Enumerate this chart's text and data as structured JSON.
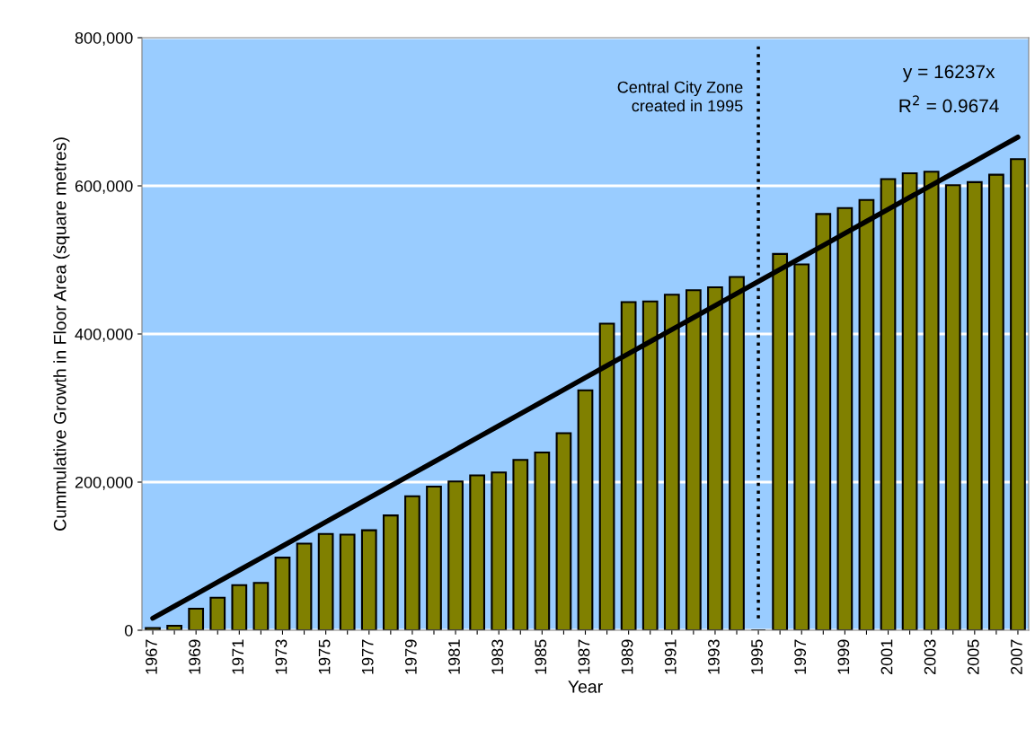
{
  "chart_data": {
    "type": "bar",
    "xlabel": "Year",
    "ylabel": "Cummulative Growth in Floor Area (square metres)",
    "categories": [
      "1967",
      null,
      "1969",
      null,
      "1971",
      null,
      "1973",
      null,
      "1975",
      null,
      "1977",
      null,
      "1979",
      null,
      "1981",
      null,
      "1983",
      null,
      "1985",
      null,
      "1987",
      null,
      "1989",
      null,
      "1991",
      null,
      "1993",
      null,
      "1995",
      null,
      "1997",
      null,
      "1999",
      null,
      "2001",
      null,
      "2003",
      null,
      "2005",
      null,
      "2007"
    ],
    "series": [
      {
        "color": "#808000",
        "values": [
          3000,
          6000,
          29000,
          44000,
          61000,
          64000,
          98000,
          117000,
          130000,
          129000,
          135000,
          155000,
          181000,
          194000,
          201000,
          209000,
          213000,
          230000,
          240000,
          266000,
          324000,
          414000,
          443000,
          444000,
          453000,
          459000,
          463000,
          477000,
          null,
          508000,
          494000,
          562000,
          570000,
          581000,
          609000,
          617000,
          619000,
          601000,
          605000,
          615000,
          636000
        ]
      },
      {
        "type": "line",
        "color": "#000000",
        "values": [
          16237,
          32474,
          48711,
          64948,
          81185,
          97422,
          113659,
          129896,
          146133,
          162370,
          178607,
          194844,
          211081,
          227318,
          243555,
          259792,
          276029,
          292266,
          308503,
          324740,
          340977,
          357214,
          373451,
          389688,
          405925,
          422162,
          438399,
          454636,
          470873,
          487110,
          503347,
          519584,
          535821,
          552058,
          568295,
          584532,
          600769,
          617006,
          633243,
          649480,
          665717
        ]
      }
    ],
    "ylim": [
      0,
      800000
    ],
    "yticks": [
      {
        "value": 0,
        "label": "0"
      },
      {
        "value": 200000,
        "label": "200,000"
      },
      {
        "value": 400000,
        "label": "400,000"
      },
      {
        "value": 600000,
        "label": "600,000"
      },
      {
        "value": 800000,
        "label": "800,000"
      }
    ],
    "grid": "y",
    "ref_lines": [
      {
        "axis": "x",
        "value": "1995",
        "label": "Central City Zone\ncreated in 1995",
        "color": "#000000",
        "line_style": "dotted"
      }
    ],
    "annotations": [
      "y = 16237x",
      "R$^{2}$ = 0.9674"
    ]
  }
}
